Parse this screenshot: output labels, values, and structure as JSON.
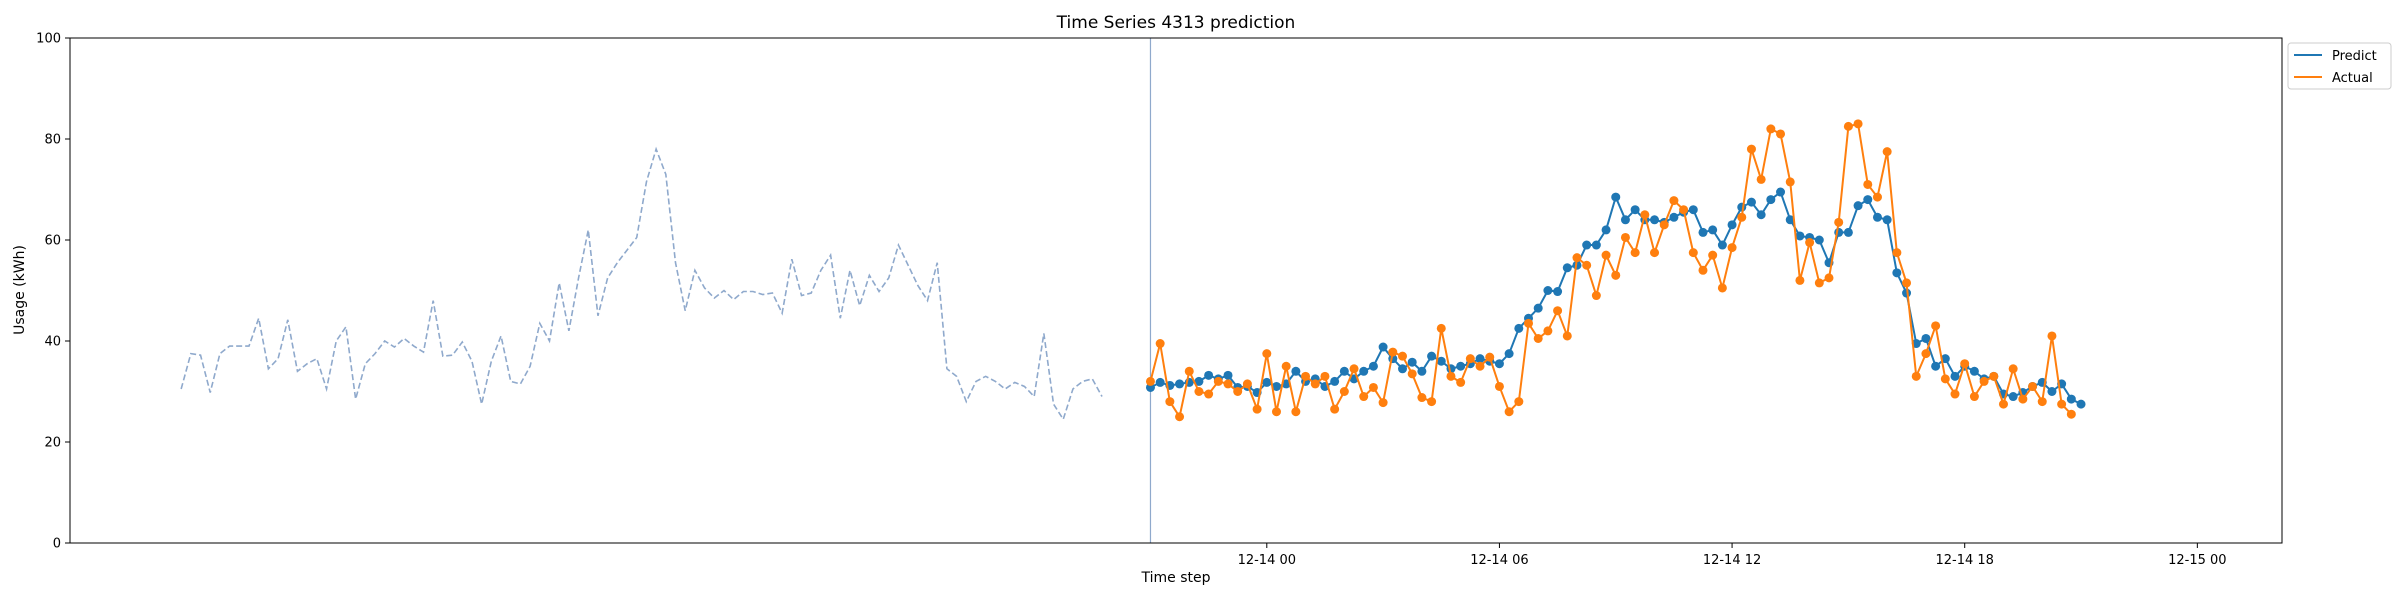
{
  "chart_data": {
    "type": "line",
    "title": "Time Series 4313 prediction",
    "xlabel": "Time step",
    "ylabel": "Usage (kWh)",
    "ylim": [
      0,
      100
    ],
    "yticks": [
      0,
      20,
      40,
      60,
      80,
      100
    ],
    "x_unit": "hour",
    "x_start": "12-13 20:00",
    "x_end": "12-15 23:00",
    "xlim": [
      "12-13 17:08",
      "12-16 02:11"
    ],
    "xticks": [
      {
        "label": "12-14 00",
        "hour": 24
      },
      {
        "label": "12-14 06",
        "hour": 30
      },
      {
        "label": "12-14 12",
        "hour": 36
      },
      {
        "label": "12-14 18",
        "hour": 42
      },
      {
        "label": "12-15 00",
        "hour": 48
      },
      {
        "label": "12-15 06",
        "hour": 54
      },
      {
        "label": "12-15 12",
        "hour": 60
      },
      {
        "label": "12-15 18",
        "hour": 66
      }
    ],
    "step_minutes": 15,
    "vline_time": "12-14 21:00",
    "legend_position": "top-right",
    "grid": false,
    "series": [
      {
        "name": "history",
        "style": "dashed",
        "color": "#8fa9cc",
        "start": "12-13 20:00",
        "values": [
          30.5,
          37.5,
          37.2,
          29.8,
          37.5,
          39,
          39,
          39,
          44.5,
          34.5,
          36.5,
          44.2,
          34,
          35.5,
          36.5,
          30.5,
          40,
          42.8,
          28.5,
          35.5,
          37.5,
          40,
          38.8,
          40.5,
          39,
          37.8,
          48,
          37,
          37.2,
          39.8,
          36,
          27.5,
          36,
          41,
          32,
          31.5,
          35,
          43.5,
          40,
          51.5,
          42,
          52.5,
          62,
          45,
          52.5,
          55.5,
          58,
          60.5,
          71.5,
          78,
          73,
          55.5,
          46,
          54,
          50.5,
          48.5,
          50,
          48.2,
          49.8,
          49.8,
          49.2,
          49.5,
          45.5,
          56.2,
          49,
          49.5,
          54,
          57,
          44.5,
          54,
          47,
          53,
          49.8,
          52.5,
          59,
          55,
          51,
          48,
          55.5,
          34.5,
          33,
          28,
          32,
          33,
          32,
          30.5,
          31.8,
          31,
          29,
          41.5,
          27.5,
          24.5,
          30.5,
          32,
          32.5,
          29
        ]
      },
      {
        "name": "Predict",
        "color": "#1f77b4",
        "start": "12-14 21:00",
        "values": [
          30.8,
          31.8,
          31.2,
          31.5,
          31.8,
          32,
          33.2,
          32.5,
          33.2,
          30.8,
          31,
          29.8,
          31.8,
          31,
          31.5,
          34,
          32,
          32.5,
          31,
          32,
          34,
          32.5,
          34,
          35,
          38.8,
          36.5,
          34.5,
          35.8,
          34,
          37,
          36,
          34.5,
          35,
          35.5,
          36.5,
          36,
          35.5,
          37.5,
          42.5,
          44.5,
          46.5,
          50,
          49.8,
          54.5,
          55,
          59,
          59,
          62,
          68.5,
          64,
          66,
          64,
          64,
          63.5,
          64.5,
          65.5,
          66,
          61.5,
          62,
          59,
          63,
          66.5,
          67.5,
          65,
          68,
          69.5,
          64,
          60.8,
          60.5,
          60,
          55.5,
          61.5,
          61.5,
          66.8,
          68,
          64.5,
          64,
          53.5,
          49.5,
          39.5,
          40.5,
          35,
          36.5,
          33,
          35,
          34,
          32.5,
          33,
          29.5,
          29,
          29.8,
          31,
          31.8,
          30,
          31.5,
          28.5,
          27.5
        ]
      },
      {
        "name": "Actual",
        "color": "#ff7f0e",
        "start": "12-14 21:00",
        "values": [
          32,
          39.5,
          28,
          25,
          34,
          30,
          29.5,
          32,
          31.5,
          30,
          31.5,
          26.5,
          37.5,
          26,
          35,
          26,
          33,
          31.5,
          33,
          26.5,
          30,
          34.5,
          29,
          30.8,
          27.8,
          37.8,
          37,
          33.5,
          28.8,
          28,
          42.5,
          33,
          31.8,
          36.5,
          35,
          36.8,
          31,
          26,
          28,
          43.5,
          40.5,
          42,
          46,
          41,
          56.5,
          55,
          49,
          57,
          53,
          60.5,
          57.5,
          65,
          57.5,
          63,
          67.8,
          66,
          57.5,
          54,
          57,
          50.5,
          58.5,
          64.5,
          78,
          72,
          82,
          81,
          71.5,
          52,
          59.5,
          51.5,
          52.5,
          63.5,
          82.5,
          83,
          71,
          68.5,
          77.5,
          57.5,
          51.5,
          33,
          37.5,
          43,
          32.5,
          29.5,
          35.5,
          29,
          32,
          33,
          27.5,
          34.5,
          28.5,
          31,
          28,
          41,
          27.5,
          25.5
        ]
      }
    ]
  }
}
